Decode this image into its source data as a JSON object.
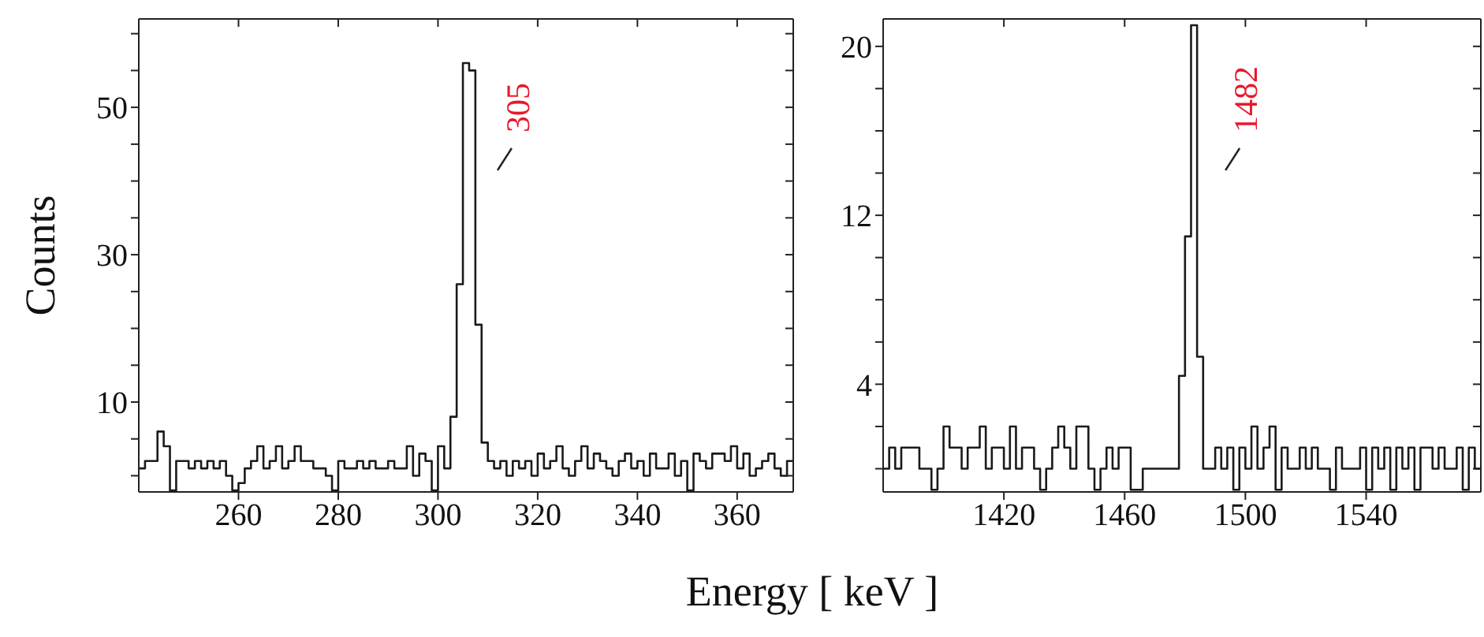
{
  "chart_data": [
    {
      "type": "histogram",
      "ylabel": "Counts",
      "xlabel": "Energy [ keV ]",
      "color": "#1a1a1a",
      "bins": [
        240,
        241.25,
        242.5,
        243.75,
        245,
        246.25,
        247.5,
        248.75,
        250,
        251.25,
        252.5,
        253.75,
        255,
        256.25,
        257.5,
        258.75,
        260,
        261.25,
        262.5,
        263.75,
        265,
        266.25,
        267.5,
        268.75,
        270,
        271.25,
        272.5,
        273.75,
        275,
        276.25,
        277.5,
        278.75,
        280,
        281.25,
        282.5,
        283.75,
        285,
        286.25,
        287.5,
        288.75,
        290,
        291.25,
        292.5,
        293.75,
        295,
        296.25,
        297.5,
        298.75,
        300,
        301.25,
        302.5,
        303.75,
        305,
        306.25,
        307.5,
        308.75,
        310,
        311.25,
        312.5,
        313.75,
        315,
        316.25,
        317.5,
        318.75,
        320,
        321.25,
        322.5,
        323.75,
        325,
        326.25,
        327.5,
        328.75,
        330,
        331.25,
        332.5,
        333.75,
        335,
        336.25,
        337.5,
        338.75,
        340,
        341.25,
        342.5,
        343.75,
        345,
        346.25,
        347.5,
        348.75,
        350,
        351.25,
        352.5,
        353.75,
        355,
        356.25,
        357.5,
        358.75,
        360,
        361.25,
        362.5,
        363.75,
        365,
        366.25,
        367.5,
        368.75,
        370,
        371.25
      ],
      "values": [
        1,
        2,
        2,
        6,
        4,
        -2,
        2,
        2,
        1,
        2,
        1,
        2,
        1,
        2,
        0,
        -2,
        -1,
        1,
        2,
        4,
        1,
        2,
        4,
        1,
        2,
        4,
        2,
        2,
        1,
        1,
        0,
        -2,
        2,
        1,
        1,
        2,
        1,
        2,
        1,
        1,
        2,
        1,
        1,
        4,
        0,
        3,
        2,
        -2,
        4,
        1,
        8,
        26,
        56,
        55,
        20.5,
        4.5,
        2,
        1,
        2,
        0,
        2,
        1,
        2,
        0,
        3,
        1,
        2,
        4,
        1,
        0,
        2,
        4,
        1,
        3,
        2,
        1,
        0,
        2,
        3,
        1,
        2,
        0,
        3,
        1,
        1,
        3,
        0,
        2,
        -2,
        3,
        2,
        1,
        3,
        3,
        2,
        4,
        1,
        3,
        0,
        1,
        2,
        3,
        1,
        0,
        2
      ],
      "xlim": [
        240,
        371.25
      ],
      "ylim": [
        -2.2,
        62
      ],
      "xticks": [
        260,
        280,
        300,
        320,
        340,
        360
      ],
      "yticks": [
        {
          "value": 0,
          "label": null
        },
        {
          "value": 5,
          "label": null
        },
        10,
        {
          "value": 15,
          "label": null
        },
        {
          "value": 20,
          "label": null
        },
        {
          "value": 25,
          "label": null
        },
        30,
        {
          "value": 35,
          "label": null
        },
        {
          "value": 40,
          "label": null
        },
        {
          "value": 45,
          "label": null
        },
        50,
        {
          "value": 55,
          "label": null
        },
        {
          "value": 60,
          "label": null
        }
      ],
      "annotations": [
        "305"
      ]
    },
    {
      "type": "histogram",
      "color": "#1a1a1a",
      "bins": [
        1380,
        1382,
        1384,
        1386,
        1388,
        1390,
        1392,
        1394,
        1396,
        1398,
        1400,
        1402,
        1404,
        1406,
        1408,
        1410,
        1412,
        1414,
        1416,
        1418,
        1420,
        1422,
        1424,
        1426,
        1428,
        1430,
        1432,
        1434,
        1436,
        1438,
        1440,
        1442,
        1444,
        1446,
        1448,
        1450,
        1452,
        1454,
        1456,
        1458,
        1460,
        1462,
        1464,
        1466,
        1468,
        1470,
        1472,
        1474,
        1476,
        1478,
        1480,
        1482,
        1484,
        1486,
        1488,
        1490,
        1492,
        1494,
        1496,
        1498,
        1500,
        1502,
        1504,
        1506,
        1508,
        1510,
        1512,
        1514,
        1516,
        1518,
        1520,
        1522,
        1524,
        1526,
        1528,
        1530,
        1532,
        1534,
        1536,
        1538,
        1540,
        1542,
        1544,
        1546,
        1548,
        1550,
        1552,
        1554,
        1556,
        1558,
        1560,
        1562,
        1564,
        1566,
        1568,
        1570,
        1572,
        1574,
        1576,
        1578
      ],
      "values": [
        0,
        1,
        0,
        1,
        1,
        1,
        0,
        0,
        -1,
        0,
        2,
        1,
        1,
        0,
        1,
        1,
        2,
        0,
        1,
        1,
        0,
        2,
        0,
        1,
        1,
        0,
        -1,
        0,
        1,
        2,
        1,
        0,
        2,
        2,
        0,
        -1,
        0,
        1,
        0,
        1,
        1,
        -1,
        -1,
        0,
        0,
        0,
        0,
        0,
        0,
        4.4,
        11,
        21,
        5.3,
        0,
        0,
        1,
        0,
        1,
        -1,
        1,
        0,
        2,
        0,
        1,
        2,
        -1,
        1,
        0,
        0,
        1,
        0,
        1,
        0,
        0,
        -1,
        1,
        0,
        0,
        0,
        1,
        -1,
        1,
        0,
        1,
        -1,
        1,
        0,
        1,
        -1,
        1,
        1,
        0,
        1,
        0,
        0,
        1,
        -1,
        1,
        0
      ],
      "xlim": [
        1380,
        1578
      ],
      "ylim": [
        -1.1,
        21.3
      ],
      "xticks": [
        1420,
        1460,
        1500,
        1540
      ],
      "yticks": [
        {
          "value": 0,
          "label": null
        },
        {
          "value": 2,
          "label": null
        },
        4,
        {
          "value": 6,
          "label": null
        },
        {
          "value": 8,
          "label": null
        },
        {
          "value": 10,
          "label": null
        },
        12,
        {
          "value": 14,
          "label": null
        },
        {
          "value": 16,
          "label": null
        },
        {
          "value": 18,
          "label": null
        },
        20
      ],
      "annotations": [
        "1482"
      ]
    }
  ]
}
